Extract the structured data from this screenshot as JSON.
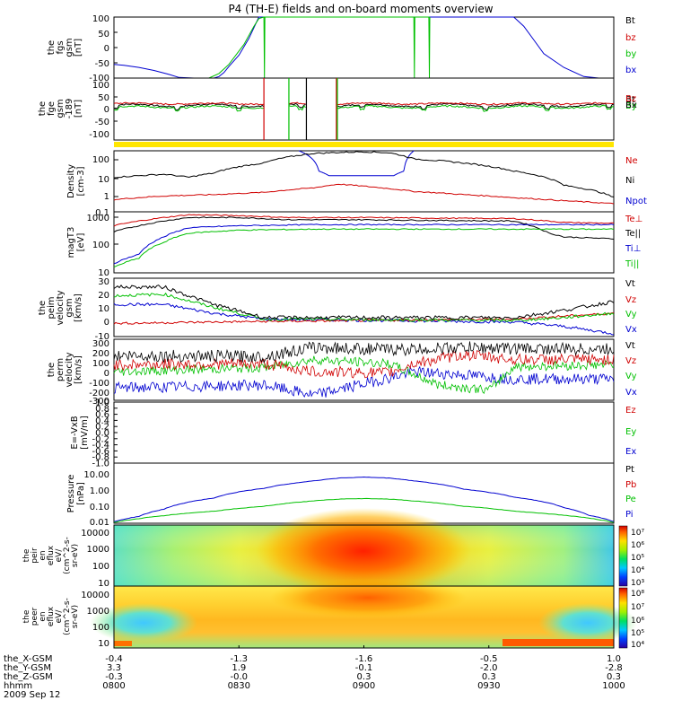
{
  "title": "P4 (TH-E) fields and on-board moments overview",
  "chart_data": [
    {
      "type": "line",
      "panel": "fgs",
      "ylabel_lines": [
        "the",
        "fgs",
        "gsm",
        "[nT]"
      ],
      "ylim": [
        -100,
        100
      ],
      "yticks": [
        "100",
        "50",
        "0",
        "-50",
        "-100"
      ],
      "legend": [
        {
          "label": "Bt",
          "color": "#000000"
        },
        {
          "label": "bz",
          "color": "#d00000"
        },
        {
          "label": "by",
          "color": "#00c000"
        },
        {
          "label": "bx",
          "color": "#0000d0"
        }
      ],
      "series": [
        {
          "label": "bx",
          "color": "#0000d0",
          "x": [
            0.0,
            0.02,
            0.05,
            0.08,
            0.11,
            0.13,
            0.16,
            0.18,
            0.19,
            0.2,
            0.21,
            0.22,
            0.23,
            0.25,
            0.27,
            0.29,
            0.61,
            0.66,
            0.7,
            0.75,
            0.8,
            0.82,
            0.84,
            0.86,
            0.9,
            0.94,
            0.97,
            1.0
          ],
          "y": [
            -55,
            -58,
            -65,
            -75,
            -88,
            -98,
            -100,
            -100,
            -100,
            -100,
            -95,
            -82,
            -62,
            -25,
            30,
            100,
            100,
            100,
            100,
            100,
            100,
            70,
            25,
            -20,
            -65,
            -95,
            -100,
            -100
          ]
        },
        {
          "label": "by",
          "color": "#00c000",
          "x": [
            0.19,
            0.21,
            0.23,
            0.26,
            0.28,
            0.29,
            0.3,
            0.301,
            0.302,
            0.6,
            0.601,
            0.602,
            0.62,
            0.63,
            0.631,
            0.632
          ],
          "y": [
            -100,
            -85,
            -55,
            10,
            70,
            95,
            100,
            -100,
            100,
            100,
            -100,
            100,
            100,
            100,
            -100,
            100
          ]
        }
      ]
    },
    {
      "type": "line",
      "panel": "fge",
      "ylabel_lines": [
        "the",
        "fge",
        "gsm",
        "-189",
        "[nT]"
      ],
      "ylim": [
        -125,
        125
      ],
      "yticks": [
        "100",
        "50",
        "0",
        "-50",
        "-100"
      ],
      "legend": [
        {
          "label": "Bt",
          "color": "#000000"
        },
        {
          "label": "Bz",
          "color": "#d00000"
        },
        {
          "label": "By",
          "color": "#00c000"
        },
        {
          "label": "Bx",
          "color": "#0000d0"
        }
      ],
      "gaps": [
        [
          0.3,
          0.35
        ],
        [
          0.385,
          0.445
        ]
      ]
    },
    {
      "type": "line",
      "panel": "density",
      "ylabel_lines": [
        "Density",
        "[cm-3]"
      ],
      "ylim": [
        0.1,
        100
      ],
      "scale": "log",
      "yticks": [
        "100",
        "10",
        "1",
        "0.1"
      ],
      "legend": [
        {
          "label": "Ne",
          "color": "#d00000"
        },
        {
          "label": "Ni",
          "color": "#000000"
        },
        {
          "label": "Npot",
          "color": "#0000d0"
        }
      ]
    },
    {
      "type": "line",
      "panel": "temperature",
      "ylabel_lines": [
        "magT3",
        "[eV]"
      ],
      "ylim": [
        10,
        1000
      ],
      "scale": "log",
      "yticks": [
        "1000",
        "100",
        "10"
      ],
      "legend": [
        {
          "label": "Te⊥",
          "color": "#d00000"
        },
        {
          "label": "Te||",
          "color": "#000000"
        },
        {
          "label": "Ti⊥",
          "color": "#0000d0"
        },
        {
          "label": "Ti||",
          "color": "#00c000"
        }
      ]
    },
    {
      "type": "line",
      "panel": "eesa_velocity",
      "ylabel_lines": [
        "the",
        "peim",
        "velocity",
        "gsm",
        "[km/s]"
      ],
      "ylim": [
        -10,
        30
      ],
      "yticks": [
        "30",
        "20",
        "10",
        "0",
        "-10"
      ],
      "legend": [
        {
          "label": "Vt",
          "color": "#000000"
        },
        {
          "label": "Vz",
          "color": "#d00000"
        },
        {
          "label": "Vy",
          "color": "#00c000"
        },
        {
          "label": "Vx",
          "color": "#0000d0"
        }
      ]
    },
    {
      "type": "line",
      "panel": "iesa_velocity",
      "ylabel_lines": [
        "the",
        "perm",
        "velocity",
        "[km/s]"
      ],
      "ylim": [
        -300,
        300
      ],
      "yticks": [
        "300",
        "200",
        "100",
        "0",
        "-100",
        "-200",
        "-300"
      ],
      "legend": [
        {
          "label": "Vt",
          "color": "#000000"
        },
        {
          "label": "Vz",
          "color": "#d00000"
        },
        {
          "label": "Vy",
          "color": "#00c000"
        },
        {
          "label": "Vx",
          "color": "#0000d0"
        }
      ]
    },
    {
      "type": "line",
      "panel": "efield",
      "ylabel_lines": [
        "E=-VxB",
        "[mV/m]"
      ],
      "ylim": [
        -1,
        1
      ],
      "yticks": [
        "1.0",
        "0.8",
        "0.6",
        "0.4",
        "0.2",
        "0.0",
        "-0.2",
        "-0.4",
        "-0.6",
        "-0.8",
        "-1.0"
      ],
      "legend": [
        {
          "label": "Ez",
          "color": "#d00000"
        },
        {
          "label": "Ey",
          "color": "#00c000"
        },
        {
          "label": "Ex",
          "color": "#0000d0"
        }
      ]
    },
    {
      "type": "line",
      "panel": "pressure",
      "ylabel_lines": [
        "Pressure",
        "[nPa]"
      ],
      "ylim": [
        0.01,
        10
      ],
      "scale": "log",
      "yticks": [
        "10.00",
        "1.00",
        "0.10",
        "0.01"
      ],
      "legend": [
        {
          "label": "Pt",
          "color": "#000000"
        },
        {
          "label": "Pb",
          "color": "#d00000"
        },
        {
          "label": "Pe",
          "color": "#00c000"
        },
        {
          "label": "Pi",
          "color": "#0000d0"
        }
      ],
      "series": [
        {
          "label": "Pi",
          "color": "#0000d0",
          "x": [
            0.0,
            0.05,
            0.1,
            0.2,
            0.3,
            0.4,
            0.45,
            0.5,
            0.55,
            0.6,
            0.7,
            0.8,
            0.9,
            0.95,
            1.0
          ],
          "y": [
            0.012,
            0.022,
            0.05,
            0.18,
            0.55,
            1.3,
            1.8,
            2.0,
            1.8,
            1.3,
            0.5,
            0.2,
            0.06,
            0.025,
            0.012
          ]
        },
        {
          "label": "Pe",
          "color": "#00c000",
          "x": [
            0.0,
            0.05,
            0.1,
            0.2,
            0.3,
            0.4,
            0.45,
            0.5,
            0.55,
            0.6,
            0.7,
            0.8,
            0.9,
            1.0
          ],
          "y": [
            0.011,
            0.017,
            0.024,
            0.04,
            0.07,
            0.13,
            0.16,
            0.17,
            0.16,
            0.13,
            0.07,
            0.04,
            0.025,
            0.011
          ]
        }
      ]
    },
    {
      "type": "heatmap",
      "panel": "ion_energy_flux",
      "ylabel_lines": [
        "the",
        "peir",
        "en",
        "eflux",
        "eV/",
        "(cm^2-s-",
        "sr-eV)"
      ],
      "ylim": [
        10,
        20000
      ],
      "scale": "log",
      "yticks": [
        "10000",
        "1000",
        "100",
        "10"
      ],
      "colorbar_ticks": [
        "10⁷",
        "10⁶",
        "10⁵",
        "10⁴",
        "10³"
      ]
    },
    {
      "type": "heatmap",
      "panel": "electron_energy_flux",
      "ylabel_lines": [
        "the",
        "peer",
        "en",
        "eflux",
        "eV/",
        "(cm^2-s-",
        "sr-eV)"
      ],
      "ylim": [
        7,
        25000
      ],
      "scale": "log",
      "yticks": [
        "10000",
        "1000",
        "100",
        "10"
      ],
      "colorbar_ticks": [
        "10⁸",
        "10⁷",
        "10⁶",
        "10⁵",
        "10⁴"
      ]
    }
  ],
  "x_axis": {
    "row_labels": [
      "the_X-GSM",
      "the_Y-GSM",
      "the_Z-GSM",
      "hhmm"
    ],
    "date": "2009 Sep 12",
    "ticks": [
      {
        "values": [
          "-0.4",
          "3.3",
          "-0.3",
          "0800"
        ]
      },
      {
        "values": [
          "-1.3",
          "1.9",
          "-0.0",
          "0830"
        ]
      },
      {
        "values": [
          "-1.6",
          "-0.1",
          "0.3",
          "0900"
        ]
      },
      {
        "values": [
          "-0.5",
          "-2.0",
          "0.3",
          "0930"
        ]
      },
      {
        "values": [
          "1.0",
          "-2.8",
          "0.3",
          "1000"
        ]
      }
    ]
  }
}
